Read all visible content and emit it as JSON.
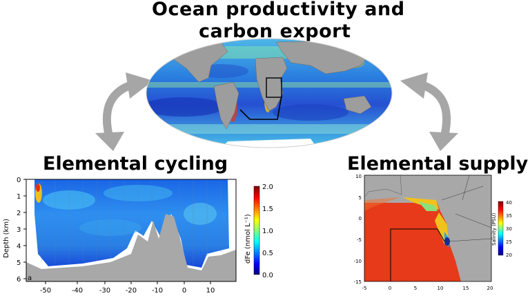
{
  "titles": {
    "top_line1": "Ocean productivity and",
    "top_line2": "carbon export",
    "left": "Elemental cycling",
    "right": "Elemental supply"
  },
  "left_panel": {
    "panel_letter": "a",
    "ylabel": "Depth (km)",
    "x_ticks": [
      "-50",
      "-40",
      "-30",
      "-20",
      "-10",
      "0",
      "10"
    ],
    "y_ticks": [
      "0",
      "1",
      "2",
      "3",
      "4",
      "5",
      "6"
    ],
    "colorbar_label": "dFe (nmol L⁻¹)",
    "colorbar_ticks": [
      "2.0",
      "1.5",
      "1.0",
      "0.5",
      "0.0"
    ]
  },
  "right_panel": {
    "x_ticks": [
      "-5",
      "0",
      "5",
      "10",
      "15",
      "20"
    ],
    "y_ticks": [
      "10",
      "5",
      "0",
      "-5",
      "-10",
      "-15"
    ],
    "colorbar_label": "Salinity (PSU)",
    "colorbar_ticks": [
      "40",
      "35",
      "30",
      "25",
      "20"
    ]
  },
  "colors": {
    "arrow": "#a6a6a6",
    "land": "#9d9d9d",
    "ocean_high": "#e0220f",
    "ocean_low": "#1f3fc9"
  },
  "icons": [
    "curved-arrow-left",
    "curved-arrow-right",
    "world-map",
    "study-region-box",
    "cruise-track-line"
  ]
}
